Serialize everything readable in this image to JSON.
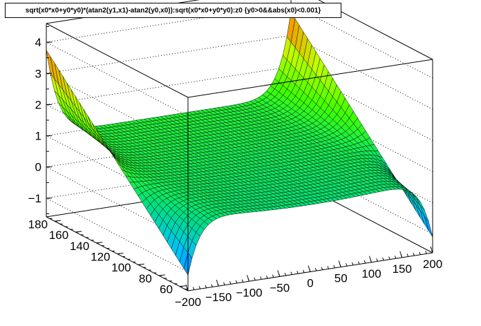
{
  "title": "sqrt(x0*x0+y0*y0)*(atan2(y1,x1)-atan2(y0,x0)):sqrt(x0*x0+y0*y0):z0 {y0>0&&abs(x0)<0.001}",
  "chart_data": {
    "type": "surface",
    "title": "sqrt(x0*x0+y0*y0)*(atan2(y1,x1)-atan2(y0,x0)):sqrt(x0*x0+y0*y0):z0 {y0>0&&abs(x0)<0.001}",
    "xlabel": "",
    "ylabel": "",
    "zlabel": "",
    "xlim": [
      -200,
      200
    ],
    "ylim": [
      52,
      188
    ],
    "zlim": [
      -1.6,
      4.6
    ],
    "x_ticks": [
      "−200",
      "−150",
      "−100",
      "−50",
      "0",
      "50",
      "100",
      "150",
      "200"
    ],
    "y_ticks": [
      "60",
      "80",
      "100",
      "120",
      "140",
      "160",
      "180"
    ],
    "z_ticks": [
      "−1",
      "0",
      "1",
      "2",
      "3",
      "4"
    ],
    "grid": true,
    "surface_description": "Surface z(x,y): approx 0.5 in the interior, rising toward +4.1 at x=±200 for large y, dipping toward −1.3 at x=±200 for small y",
    "color_map": [
      "#0000ff",
      "#00c0ff",
      "#00e080",
      "#40ff00",
      "#c0ff00",
      "#ff8000",
      "#ff0000"
    ]
  }
}
